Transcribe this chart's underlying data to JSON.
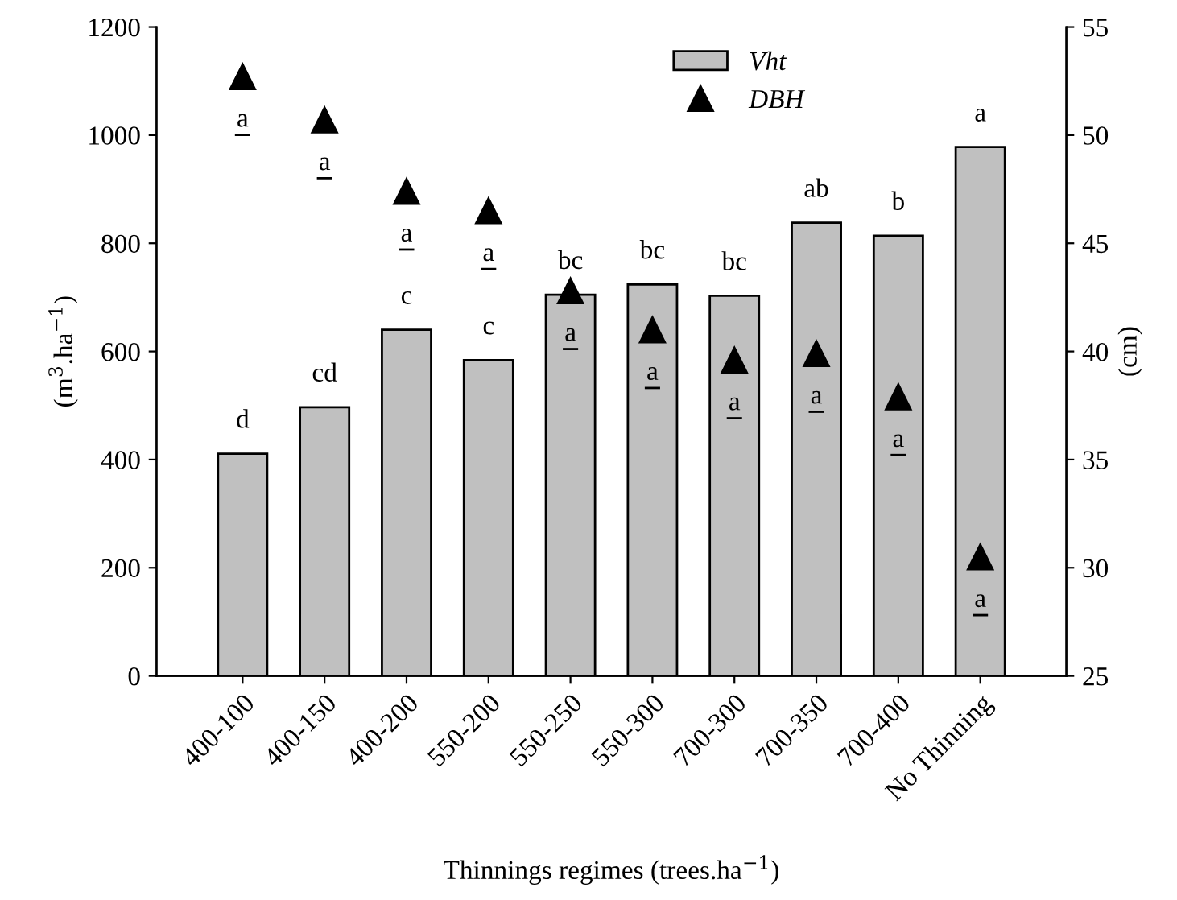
{
  "chart_data": {
    "type": "bar",
    "xlabel": "Thinnings regimes (trees.ha$^{−1}$)",
    "ylabel": "(m$^{3}$.ha$^{−1}$)",
    "y2label": "(cm)",
    "categories": [
      "400-100",
      "400-150",
      "400-200",
      "550-200",
      "550-250",
      "550-300",
      "700-300",
      "700-350",
      "700-400",
      "No Thinning"
    ],
    "series": [
      {
        "name": "Vht",
        "color": "#c0c0c0",
        "values": [
          411,
          497,
          640,
          584,
          705,
          724,
          703,
          838,
          814,
          978
        ],
        "value_labels": [
          "d",
          "cd",
          "c",
          "c",
          "bc",
          "bc",
          "bc",
          "ab",
          "b",
          "a"
        ]
      },
      {
        "name": "DBH",
        "type": "scatter",
        "axis": "y2",
        "color": "#000000",
        "marker": "triangle",
        "values": [
          52.7,
          50.7,
          47.4,
          46.5,
          42.8,
          41.0,
          39.6,
          39.9,
          37.9,
          30.5
        ],
        "value_labels": [
          "a",
          "a",
          "a",
          "a",
          "a",
          "a",
          "a",
          "a",
          "a",
          "a"
        ]
      }
    ],
    "ylim": [
      0,
      1200
    ],
    "yticks": [
      0,
      200,
      400,
      600,
      800,
      1000,
      1200
    ],
    "y2lim": [
      25,
      55
    ],
    "y2ticks": [
      25,
      30,
      35,
      40,
      45,
      50,
      55
    ],
    "legend": "top",
    "grid": false
  }
}
